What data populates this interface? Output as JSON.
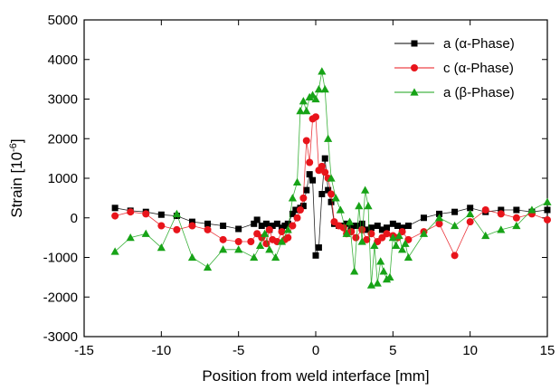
{
  "chart_data": {
    "type": "line",
    "xlabel": "Position from weld interface [mm]",
    "ylabel": "Strain [10",
    "ylabel_exponent": "-6",
    "ylabel_suffix": "]",
    "xlim": [
      -15,
      15
    ],
    "ylim": [
      -3000,
      5000
    ],
    "xticks": [
      -15,
      -10,
      -5,
      0,
      5,
      10,
      15
    ],
    "yticks": [
      -3000,
      -2000,
      -1000,
      0,
      1000,
      2000,
      3000,
      4000,
      5000
    ],
    "grid": false,
    "legend_position": "top-right",
    "series": [
      {
        "name": "a (α-Phase)",
        "color": "#000000",
        "marker": "square",
        "x": [
          -13,
          -12,
          -11,
          -10,
          -9,
          -8,
          -7,
          -6,
          -5,
          -4,
          -3.8,
          -3.5,
          -3.2,
          -3,
          -2.8,
          -2.5,
          -2.2,
          -2,
          -1.8,
          -1.5,
          -1.3,
          -1,
          -0.8,
          -0.6,
          -0.4,
          -0.2,
          0,
          0.2,
          0.4,
          0.6,
          0.8,
          1,
          1.2,
          1.5,
          1.8,
          2,
          2.3,
          2.6,
          3,
          3.3,
          3.6,
          4,
          4.3,
          4.6,
          5,
          5.3,
          5.6,
          6,
          7,
          8,
          9,
          10,
          11,
          12,
          13,
          14,
          15
        ],
        "y": [
          250,
          180,
          150,
          80,
          50,
          -100,
          -150,
          -200,
          -280,
          -150,
          -50,
          -200,
          -150,
          -300,
          -200,
          -150,
          -250,
          -200,
          -150,
          100,
          200,
          250,
          300,
          700,
          1100,
          950,
          -950,
          -750,
          600,
          1500,
          700,
          400,
          -150,
          -200,
          -200,
          -150,
          -250,
          -200,
          -150,
          -300,
          -250,
          -200,
          -300,
          -250,
          -150,
          -200,
          -250,
          -200,
          0,
          100,
          150,
          250,
          150,
          200,
          200,
          150,
          200
        ]
      },
      {
        "name": "c (α-Phase)",
        "color": "#e8141b",
        "marker": "circle",
        "x": [
          -13,
          -12,
          -11,
          -10,
          -9,
          -8,
          -7,
          -6,
          -5,
          -4.2,
          -3.8,
          -3.5,
          -3.2,
          -3,
          -2.8,
          -2.5,
          -2.2,
          -2,
          -1.8,
          -1.5,
          -1.2,
          -1,
          -0.8,
          -0.6,
          -0.4,
          -0.2,
          0,
          0.2,
          0.4,
          0.6,
          0.8,
          1,
          1.2,
          1.5,
          1.8,
          2,
          2.3,
          2.6,
          3,
          3.3,
          3.6,
          4,
          4.3,
          4.6,
          5,
          5.3,
          5.6,
          6,
          7,
          8,
          9,
          10,
          11,
          12,
          13,
          14,
          15
        ],
        "y": [
          50,
          150,
          100,
          -200,
          -300,
          -200,
          -300,
          -550,
          -600,
          -600,
          -400,
          -500,
          -650,
          -300,
          -550,
          -600,
          -350,
          -550,
          -500,
          -200,
          0,
          200,
          500,
          1950,
          1400,
          2500,
          2550,
          1200,
          1300,
          1150,
          1000,
          600,
          -100,
          -200,
          -250,
          -400,
          -350,
          -500,
          -300,
          -550,
          -400,
          -600,
          -500,
          -400,
          -450,
          -500,
          -350,
          -550,
          -350,
          -150,
          -950,
          -100,
          200,
          100,
          0,
          100,
          -50
        ]
      },
      {
        "name": "a (β-Phase)",
        "color": "#17a317",
        "marker": "triangle",
        "x": [
          -13,
          -12,
          -11,
          -10,
          -9,
          -8,
          -7,
          -6,
          -5,
          -4,
          -3.6,
          -3.3,
          -3,
          -2.6,
          -2.2,
          -1.8,
          -1.5,
          -1.2,
          -1,
          -0.8,
          -0.6,
          -0.4,
          -0.2,
          0,
          0.2,
          0.4,
          0.6,
          0.8,
          1,
          1.3,
          1.6,
          2,
          2.2,
          2.5,
          2.8,
          3,
          3.2,
          3.4,
          3.6,
          3.8,
          4,
          4.2,
          4.4,
          4.6,
          4.8,
          5,
          5.2,
          5.4,
          5.6,
          5.8,
          6,
          7,
          8,
          9,
          10,
          11,
          12,
          13,
          14,
          15
        ],
        "y": [
          -850,
          -500,
          -400,
          -750,
          100,
          -1000,
          -1250,
          -800,
          -800,
          -1000,
          -700,
          -400,
          -800,
          -1000,
          -600,
          -300,
          500,
          900,
          2700,
          2950,
          2700,
          3050,
          3100,
          3000,
          3250,
          3700,
          3250,
          2000,
          1000,
          500,
          200,
          -400,
          -100,
          -1350,
          300,
          -600,
          700,
          300,
          -1700,
          -700,
          -1650,
          -1100,
          -1350,
          -1550,
          -1500,
          -500,
          -700,
          -450,
          -800,
          -650,
          -1000,
          -400,
          0,
          -200,
          100,
          -450,
          -300,
          -200,
          200,
          400
        ]
      }
    ]
  }
}
